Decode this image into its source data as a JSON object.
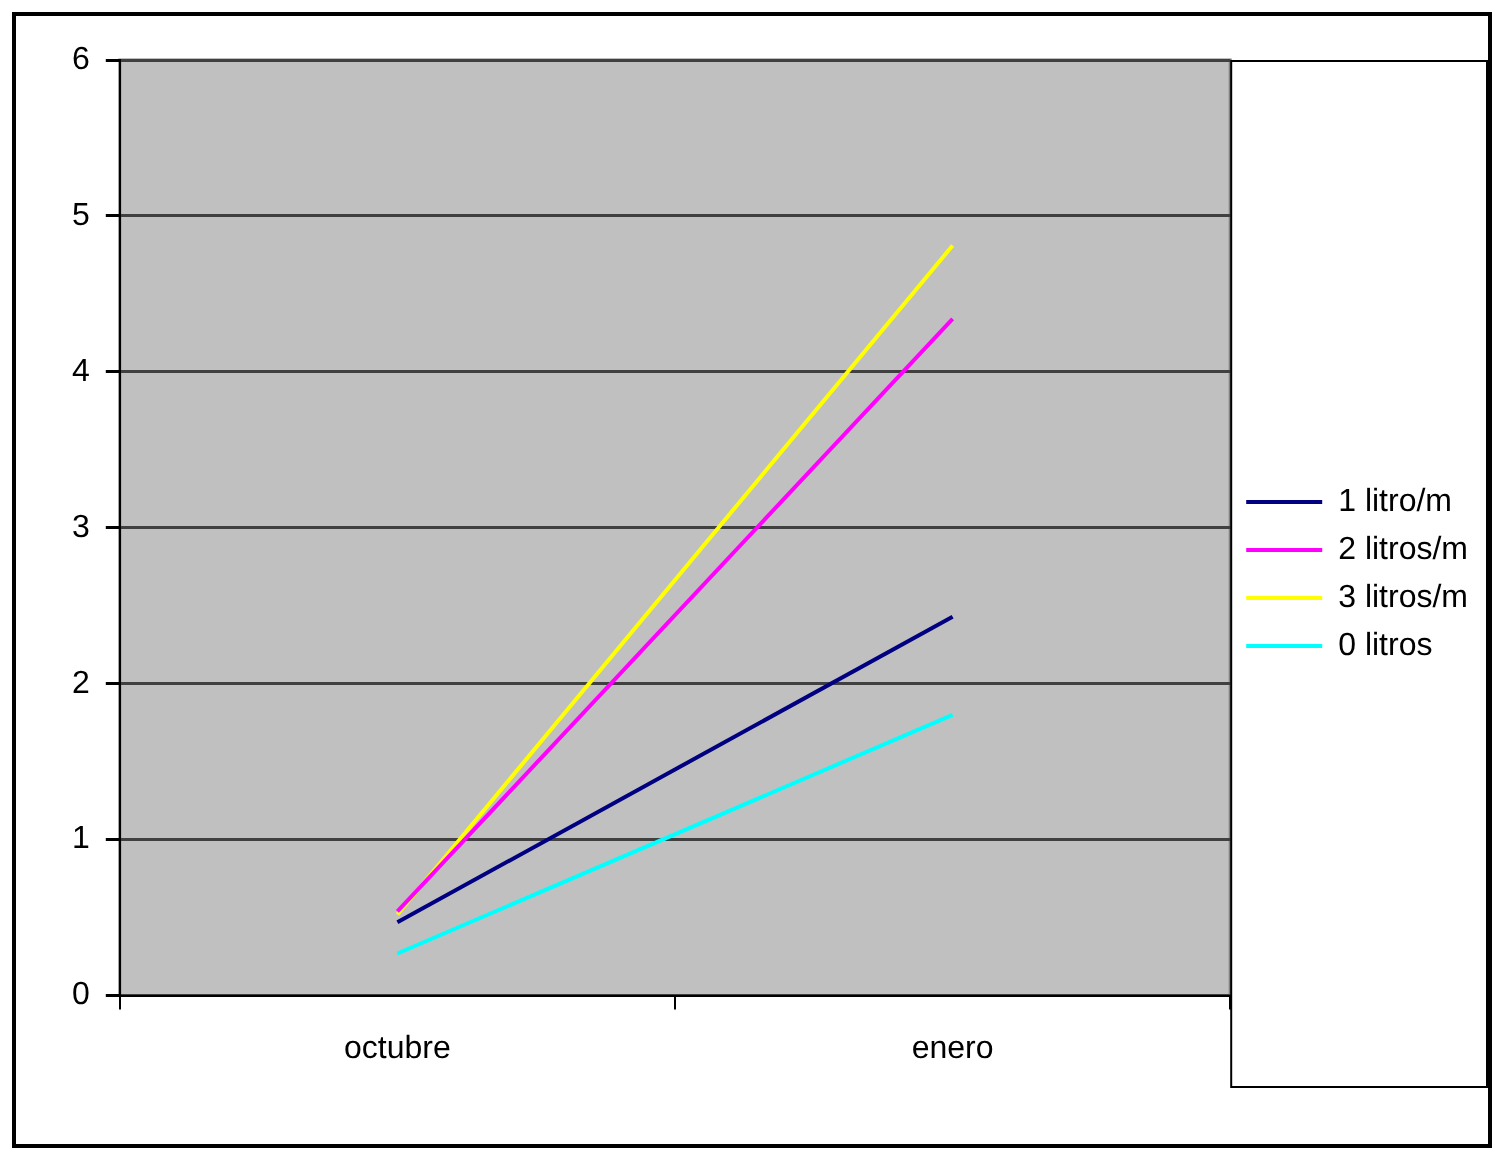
{
  "chart_data": {
    "type": "line",
    "categories": [
      "octubre",
      "enero"
    ],
    "series": [
      {
        "name": "1 litro/m",
        "color": "#000080",
        "values": [
          0.47,
          2.43
        ]
      },
      {
        "name": "2 litros/m",
        "color": "#ff00ff",
        "values": [
          0.54,
          4.34
        ]
      },
      {
        "name": "3 litros/m",
        "color": "#ffff00",
        "values": [
          0.52,
          4.81
        ]
      },
      {
        "name": "0 litros",
        "color": "#00ffff",
        "values": [
          0.27,
          1.8
        ]
      }
    ],
    "ylim": [
      0,
      6
    ],
    "yticks": [
      0,
      1,
      2,
      3,
      4,
      5,
      6
    ],
    "grid": "y",
    "legend": "right",
    "marker": "none"
  }
}
